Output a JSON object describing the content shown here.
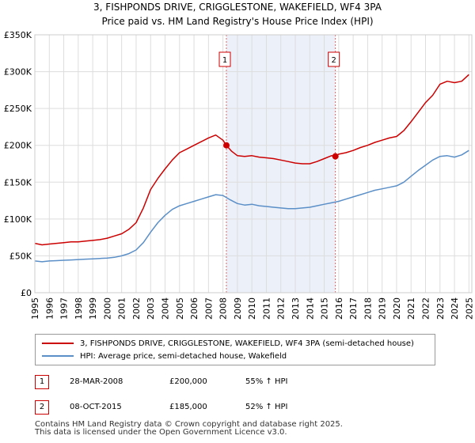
{
  "chart_data": {
    "type": "line",
    "title": "3, FISHPONDS DRIVE, CRIGGLESTONE, WAKEFIELD, WF4 3PA",
    "subtitle": "Price paid vs. HM Land Registry's House Price Index (HPI)",
    "xlim": [
      1995.0,
      2025.2
    ],
    "ylim": [
      0,
      350000
    ],
    "x_ticks": [
      1995,
      1996,
      1997,
      1998,
      1999,
      2000,
      2001,
      2002,
      2003,
      2004,
      2005,
      2006,
      2007,
      2008,
      2009,
      2010,
      2011,
      2012,
      2013,
      2014,
      2015,
      2016,
      2017,
      2018,
      2019,
      2020,
      2021,
      2022,
      2023,
      2024,
      2025
    ],
    "x_tick_labels": [
      "1995",
      "1996",
      "1997",
      "1998",
      "1999",
      "2000",
      "2001",
      "2002",
      "2003",
      "2004",
      "2005",
      "2006",
      "2007",
      "2008",
      "2009",
      "2010",
      "2011",
      "2012",
      "2013",
      "2014",
      "2015",
      "2016",
      "2017",
      "2018",
      "2019",
      "2020",
      "2021",
      "2022",
      "2023",
      "2024",
      "2025"
    ],
    "y_ticks": [
      0,
      50000,
      100000,
      150000,
      200000,
      250000,
      300000,
      350000
    ],
    "y_tick_labels": [
      "£0",
      "£50K",
      "£100K",
      "£150K",
      "£200K",
      "£250K",
      "£300K",
      "£350K"
    ],
    "grid": true,
    "shaded_period": [
      2008.24,
      2015.77
    ],
    "series": [
      {
        "name": "3, FISHPONDS DRIVE, CRIGGLESTONE, WAKEFIELD, WF4 3PA (semi-detached house)",
        "color": "#cc0000",
        "x": [
          1995.0,
          1995.5,
          1996.0,
          1996.5,
          1997.0,
          1997.5,
          1998.0,
          1998.5,
          1999.0,
          1999.5,
          2000.0,
          2000.5,
          2001.0,
          2001.5,
          2002.0,
          2002.5,
          2003.0,
          2003.5,
          2004.0,
          2004.5,
          2005.0,
          2005.5,
          2006.0,
          2006.5,
          2007.0,
          2007.5,
          2008.0,
          2008.24,
          2008.6,
          2009.0,
          2009.5,
          2010.0,
          2010.5,
          2011.0,
          2011.5,
          2012.0,
          2012.5,
          2013.0,
          2013.5,
          2014.0,
          2014.5,
          2015.0,
          2015.5,
          2015.77,
          2016.0,
          2016.5,
          2017.0,
          2017.5,
          2018.0,
          2018.5,
          2019.0,
          2019.5,
          2020.0,
          2020.5,
          2021.0,
          2021.5,
          2022.0,
          2022.5,
          2023.0,
          2023.5,
          2024.0,
          2024.5,
          2025.0
        ],
        "y": [
          67000,
          65000,
          66000,
          67000,
          68000,
          69000,
          69000,
          70000,
          71000,
          72000,
          74000,
          77000,
          80000,
          86000,
          95000,
          115000,
          140000,
          155000,
          168000,
          180000,
          190000,
          195000,
          200000,
          205000,
          210000,
          214000,
          207000,
          200000,
          192000,
          186000,
          185000,
          186000,
          184000,
          183000,
          182000,
          180000,
          178000,
          176000,
          175000,
          175000,
          178000,
          182000,
          186000,
          185000,
          188000,
          190000,
          193000,
          197000,
          200000,
          204000,
          207000,
          210000,
          212000,
          220000,
          232000,
          245000,
          258000,
          268000,
          283000,
          287000,
          285000,
          287000,
          296000
        ]
      },
      {
        "name": "HPI: Average price, semi-detached house, Wakefield",
        "color": "#5b8fc7",
        "x": [
          1995.0,
          1995.5,
          1996.0,
          1996.5,
          1997.0,
          1997.5,
          1998.0,
          1998.5,
          1999.0,
          1999.5,
          2000.0,
          2000.5,
          2001.0,
          2001.5,
          2002.0,
          2002.5,
          2003.0,
          2003.5,
          2004.0,
          2004.5,
          2005.0,
          2005.5,
          2006.0,
          2006.5,
          2007.0,
          2007.5,
          2008.0,
          2008.5,
          2009.0,
          2009.5,
          2010.0,
          2010.5,
          2011.0,
          2011.5,
          2012.0,
          2012.5,
          2013.0,
          2013.5,
          2014.0,
          2014.5,
          2015.0,
          2015.5,
          2016.0,
          2016.5,
          2017.0,
          2017.5,
          2018.0,
          2018.5,
          2019.0,
          2019.5,
          2020.0,
          2020.5,
          2021.0,
          2021.5,
          2022.0,
          2022.5,
          2023.0,
          2023.5,
          2024.0,
          2024.5,
          2025.0
        ],
        "y": [
          43000,
          42000,
          43000,
          43500,
          44000,
          44500,
          45000,
          45500,
          46000,
          46500,
          47000,
          48000,
          50000,
          53000,
          58000,
          68000,
          82000,
          95000,
          105000,
          113000,
          118000,
          121000,
          124000,
          127000,
          130000,
          133000,
          132000,
          126000,
          121000,
          119000,
          120000,
          118000,
          117000,
          116000,
          115000,
          114000,
          114000,
          115000,
          116000,
          118000,
          120000,
          122000,
          124000,
          127000,
          130000,
          133000,
          136000,
          139000,
          141000,
          143000,
          145000,
          150000,
          158000,
          166000,
          173000,
          180000,
          185000,
          186000,
          184000,
          187000,
          193000
        ]
      }
    ],
    "points": [
      {
        "label": "1",
        "x": 2008.24,
        "y": 200000
      },
      {
        "label": "2",
        "x": 2015.77,
        "y": 185000
      }
    ]
  },
  "legend": {
    "items": [
      {
        "label": "3, FISHPONDS DRIVE, CRIGGLESTONE, WAKEFIELD, WF4 3PA (semi-detached house)",
        "color": "#cc0000"
      },
      {
        "label": "HPI: Average price, semi-detached house, Wakefield",
        "color": "#5b8fc7"
      }
    ]
  },
  "events": [
    {
      "num": "1",
      "date": "28-MAR-2008",
      "price": "£200,000",
      "hpi": "55% ↑ HPI"
    },
    {
      "num": "2",
      "date": "08-OCT-2015",
      "price": "£185,000",
      "hpi": "52% ↑ HPI"
    }
  ],
  "footer": {
    "line1": "Contains HM Land Registry data © Crown copyright and database right 2025.",
    "line2": "This data is licensed under the Open Government Licence v3.0."
  }
}
